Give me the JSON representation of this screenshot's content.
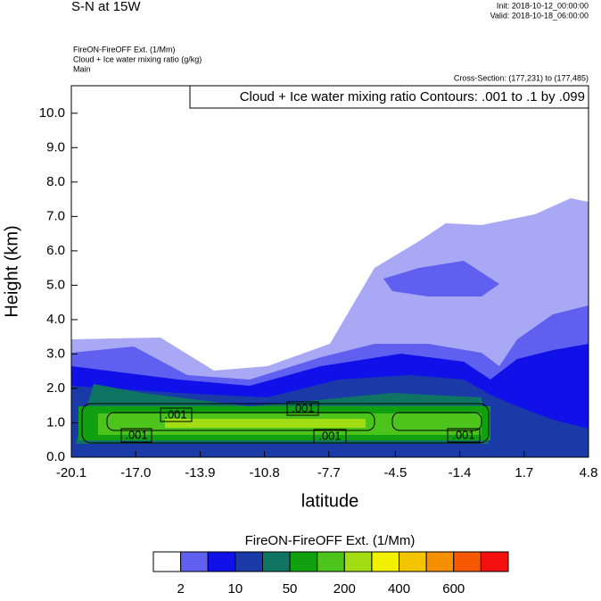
{
  "chart_data": {
    "type": "contour",
    "title": "S-N at 15W",
    "init": "Init: 2018-10-12_00:00:00",
    "valid": "Valid: 2018-10-18_06:00:00",
    "fields": [
      "FireON-FireOFF Ext.   (1/Mm)",
      "Cloud + Ice water mixing ratio   (g/kg)",
      "Main"
    ],
    "cross_section": "Cross-Section: (177,231) to (177,485)",
    "contour_info": "Cloud + Ice water mixing ratio Contours: .001 to .1 by .099",
    "contour_labels": [
      ".001",
      ".001",
      ".001",
      ".001",
      ".001"
    ],
    "x_label": "latitude",
    "y_label": "Height (km)",
    "xlim": [
      -20.1,
      4.8
    ],
    "xticks": [
      -20.1,
      {
        "value": -17,
        "label": "-17.0"
      },
      -13.9,
      -10.8,
      -7.7,
      -4.5,
      -1.4,
      1.7,
      4.8
    ],
    "ylim": [
      0,
      10.8
    ],
    "yticks": [
      {
        "value": 0,
        "label": "0.0"
      },
      {
        "value": 1,
        "label": "1.0"
      },
      {
        "value": 2,
        "label": "2.0"
      },
      {
        "value": 3,
        "label": "3.0"
      },
      {
        "value": 4,
        "label": "4.0"
      },
      {
        "value": 5,
        "label": "5.0"
      },
      {
        "value": 6,
        "label": "6.0"
      },
      {
        "value": 7,
        "label": "7.0"
      },
      {
        "value": 8,
        "label": "8.0"
      },
      {
        "value": 9,
        "label": "9.0"
      },
      {
        "value": 10,
        "label": "10.0"
      }
    ],
    "colorbar": {
      "title": "FireON-FireOFF Ext.  (1/Mm)",
      "colors": [
        "#ffffff",
        "#a8a8f5",
        "#6060f0",
        "#1010e8",
        "#1a3aa8",
        "#0f7462",
        "#10a010",
        "#4cc41c",
        "#a2dc12",
        "#f0f000",
        "#f5c400",
        "#f59000",
        "#f55800",
        "#f51010"
      ],
      "labels": [
        2,
        10,
        50,
        200,
        400,
        600
      ]
    }
  }
}
